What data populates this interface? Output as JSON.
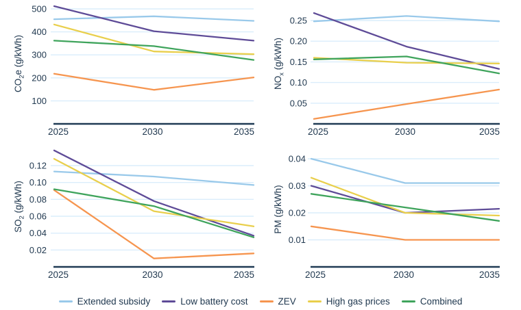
{
  "colors": {
    "axis": "#1F3A54",
    "text": "#213950",
    "gridline": "#DAEDFB",
    "background": "#FFFFFF"
  },
  "legend": {
    "items": [
      {
        "label": "Extended subsidy",
        "color": "#99C9EA"
      },
      {
        "label": "Low battery cost",
        "color": "#5E4B97"
      },
      {
        "label": "ZEV",
        "color": "#F6954F"
      },
      {
        "label": "High gas prices",
        "color": "#E9CF4C"
      },
      {
        "label": "Combined",
        "color": "#3FA45C"
      }
    ]
  },
  "chart_data": [
    {
      "type": "line",
      "ylabel": {
        "pre": "CO",
        "sub": "2",
        "post": "e (g/kWh)"
      },
      "ylabel_text": "CO2e (g/kWh)",
      "x_labels": [
        "2025",
        "2030",
        "2035"
      ],
      "yticks": [
        100,
        200,
        300,
        400,
        500
      ],
      "ytick_labels": [
        "100",
        "200",
        "300",
        "400",
        "500"
      ],
      "ylim": [
        0,
        520
      ],
      "grid": "horizontal",
      "legend_position": "bottom-shared",
      "series": [
        {
          "name": "Extended subsidy",
          "values": [
            455,
            468,
            448
          ]
        },
        {
          "name": "Low battery cost",
          "values": [
            512,
            403,
            362
          ]
        },
        {
          "name": "ZEV",
          "values": [
            218,
            148,
            202
          ]
        },
        {
          "name": "High gas prices",
          "values": [
            432,
            315,
            303
          ]
        },
        {
          "name": "Combined",
          "values": [
            362,
            338,
            278
          ]
        }
      ]
    },
    {
      "type": "line",
      "ylabel": {
        "pre": "NO",
        "sub": "x",
        "post": " (g/kWh)"
      },
      "ylabel_text": "NOx (g/kWh)",
      "x_labels": [
        "2025",
        "2030",
        "2035"
      ],
      "yticks": [
        0.05,
        0.1,
        0.15,
        0.2,
        0.25
      ],
      "ytick_labels": [
        "0.05",
        "0.10",
        "0.15",
        "0.20",
        "0.25"
      ],
      "ylim": [
        0,
        0.29
      ],
      "grid": "horizontal",
      "legend_position": "bottom-shared",
      "series": [
        {
          "name": "Extended subsidy",
          "values": [
            0.248,
            0.261,
            0.248
          ]
        },
        {
          "name": "Low battery cost",
          "values": [
            0.268,
            0.187,
            0.133
          ]
        },
        {
          "name": "ZEV",
          "values": [
            0.012,
            0.048,
            0.083
          ]
        },
        {
          "name": "High gas prices",
          "values": [
            0.16,
            0.148,
            0.146
          ]
        },
        {
          "name": "Combined",
          "values": [
            0.156,
            0.163,
            0.122
          ]
        }
      ]
    },
    {
      "type": "line",
      "ylabel": {
        "pre": "SO",
        "sub": "2",
        "post": " (g/kWh)"
      },
      "ylabel_text": "SO2 (g/kWh)",
      "x_labels": [
        "2025",
        "2030",
        "2035"
      ],
      "yticks": [
        0.02,
        0.04,
        0.06,
        0.08,
        0.1,
        0.12
      ],
      "ytick_labels": [
        "0.02",
        "0.04",
        "0.06",
        "0.08",
        "0.10",
        "0.12"
      ],
      "ylim": [
        0,
        0.14
      ],
      "grid": "horizontal",
      "legend_position": "bottom-shared",
      "series": [
        {
          "name": "Extended subsidy",
          "values": [
            0.113,
            0.107,
            0.097
          ]
        },
        {
          "name": "Low battery cost",
          "values": [
            0.138,
            0.078,
            0.037
          ]
        },
        {
          "name": "ZEV",
          "values": [
            0.091,
            0.01,
            0.016
          ]
        },
        {
          "name": "High gas prices",
          "values": [
            0.128,
            0.066,
            0.048
          ]
        },
        {
          "name": "Combined",
          "values": [
            0.092,
            0.072,
            0.035
          ]
        }
      ]
    },
    {
      "type": "line",
      "ylabel": {
        "pre": "PM",
        "sub": "",
        "post": " (g/kWh)"
      },
      "ylabel_text": "PM (g/kWh)",
      "x_labels": [
        "2025",
        "2030",
        "2035"
      ],
      "yticks": [
        0.01,
        0.02,
        0.03,
        0.04
      ],
      "ytick_labels": [
        "0.01",
        "0.02",
        "0.03",
        "0.04"
      ],
      "ylim": [
        0,
        0.044
      ],
      "grid": "horizontal",
      "legend_position": "bottom-shared",
      "series": [
        {
          "name": "Extended subsidy",
          "values": [
            0.04,
            0.031,
            0.031
          ]
        },
        {
          "name": "Low battery cost",
          "values": [
            0.03,
            0.02,
            0.0215
          ]
        },
        {
          "name": "ZEV",
          "values": [
            0.015,
            0.01,
            0.01
          ]
        },
        {
          "name": "High gas prices",
          "values": [
            0.033,
            0.02,
            0.019
          ]
        },
        {
          "name": "Combined",
          "values": [
            0.027,
            0.022,
            0.017
          ]
        }
      ]
    }
  ]
}
